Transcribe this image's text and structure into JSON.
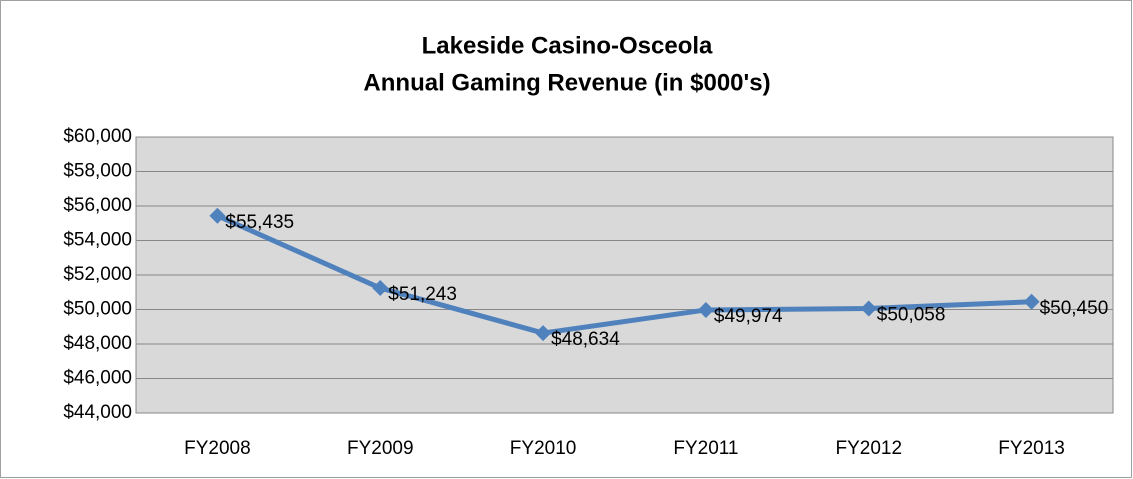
{
  "chart_data": {
    "type": "line",
    "title": "Lakeside Casino-Osceola",
    "subtitle": "Annual Gaming Revenue (in $000's)",
    "categories": [
      "FY2008",
      "FY2009",
      "FY2010",
      "FY2011",
      "FY2012",
      "FY2013"
    ],
    "series": [
      {
        "name": "Annual Gaming Revenue",
        "color": "#4f81bd",
        "values": [
          55435,
          51243,
          48634,
          49974,
          50058,
          50450
        ],
        "value_labels": [
          "$55,435",
          "$51,243",
          "$48,634",
          "$49,974",
          "$50,058",
          "$50,450"
        ]
      }
    ],
    "ylim": [
      44000,
      60000
    ],
    "yticks": [
      {
        "value": 44000,
        "label": "$44,000"
      },
      {
        "value": 46000,
        "label": "$46,000"
      },
      {
        "value": 48000,
        "label": "$48,000"
      },
      {
        "value": 50000,
        "label": "$50,000"
      },
      {
        "value": 52000,
        "label": "$52,000"
      },
      {
        "value": 54000,
        "label": "$54,000"
      },
      {
        "value": 56000,
        "label": "$56,000"
      },
      {
        "value": 58000,
        "label": "$58,000"
      },
      {
        "value": 60000,
        "label": "$60,000"
      }
    ],
    "grid": true
  }
}
